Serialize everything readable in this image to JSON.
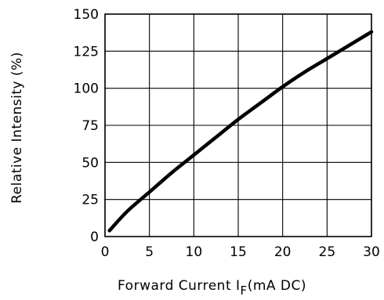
{
  "chart_data": {
    "type": "line",
    "xlabel": "Forward Current I",
    "xlabel_sub": "F",
    "xlabel_unit": "(mA DC)",
    "ylabel": "Relative Intensity (%)",
    "xlim": [
      0,
      30
    ],
    "ylim": [
      0,
      150
    ],
    "xticks": [
      0,
      5,
      10,
      15,
      20,
      25,
      30
    ],
    "yticks": [
      0,
      25,
      50,
      75,
      100,
      125,
      150
    ],
    "grid": true,
    "series": [
      {
        "x": [
          0.5,
          2.5,
          5,
          7.5,
          10,
          12.5,
          15,
          17.5,
          20,
          22.5,
          25,
          27.5,
          30
        ],
        "y": [
          4,
          17,
          30,
          43,
          55,
          67,
          79,
          90,
          101,
          111,
          120,
          129,
          138
        ]
      }
    ]
  }
}
